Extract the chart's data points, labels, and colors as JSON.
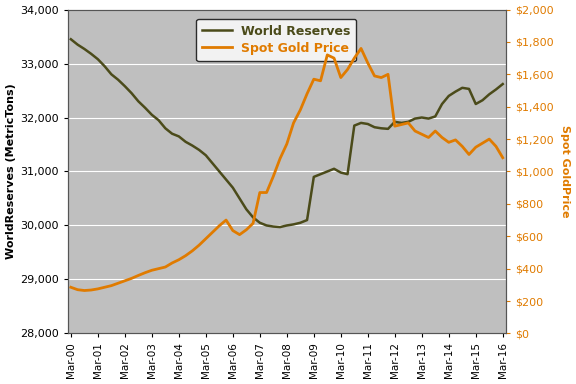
{
  "ylabel_left": "WorldReserves (MetricTons)",
  "ylabel_right": "Spot GoldPrice",
  "ylabel_right_color": "#E07B00",
  "background_color": "#BFBFBF",
  "line_reserves_color": "#4B4B1A",
  "line_gold_color": "#E07B00",
  "ylim_left": [
    28000,
    34000
  ],
  "ylim_right": [
    0,
    2000
  ],
  "yticks_left": [
    28000,
    29000,
    30000,
    31000,
    32000,
    33000,
    34000
  ],
  "yticks_right": [
    0,
    200,
    400,
    600,
    800,
    1000,
    1200,
    1400,
    1600,
    1800,
    2000
  ],
  "xtick_labels": [
    "Mar-00",
    "Mar-01",
    "Mar-02",
    "Mar-03",
    "Mar-04",
    "Mar-05",
    "Mar-06",
    "Mar-07",
    "Mar-08",
    "Mar-09",
    "Mar-10",
    "Mar-11",
    "Mar-12",
    "Mar-13",
    "Mar-14",
    "Mar-15",
    "Mar-16"
  ],
  "world_reserves_y": [
    33450,
    33350,
    33270,
    33180,
    33080,
    32950,
    32800,
    32700,
    32580,
    32450,
    32300,
    32180,
    32050,
    31950,
    31800,
    31700,
    31650,
    31550,
    31480,
    31400,
    31300,
    31150,
    31000,
    30850,
    30700,
    30500,
    30300,
    30150,
    30050,
    30000,
    29980,
    29970,
    30000,
    30020,
    30050,
    30100,
    30900,
    30950,
    31000,
    31050,
    30980,
    30950,
    31850,
    31900,
    31880,
    31820,
    31800,
    31790,
    31920,
    31900,
    31920,
    31980,
    32000,
    31980,
    32020,
    32250,
    32400,
    32480,
    32550,
    32530,
    32250,
    32320,
    32430,
    32520,
    32620
  ],
  "spot_gold_y": [
    285,
    270,
    265,
    268,
    275,
    285,
    295,
    310,
    325,
    340,
    358,
    375,
    390,
    400,
    410,
    435,
    455,
    480,
    510,
    545,
    585,
    625,
    665,
    700,
    635,
    610,
    640,
    680,
    870,
    870,
    970,
    1080,
    1170,
    1300,
    1380,
    1480,
    1570,
    1560,
    1720,
    1700,
    1580,
    1630,
    1700,
    1760,
    1670,
    1590,
    1580,
    1600,
    1280,
    1290,
    1300,
    1250,
    1230,
    1210,
    1250,
    1210,
    1180,
    1195,
    1155,
    1105,
    1150,
    1175,
    1200,
    1155,
    1085
  ],
  "legend_reserves_label": "World Reserves",
  "legend_gold_label": "Spot Gold Price"
}
